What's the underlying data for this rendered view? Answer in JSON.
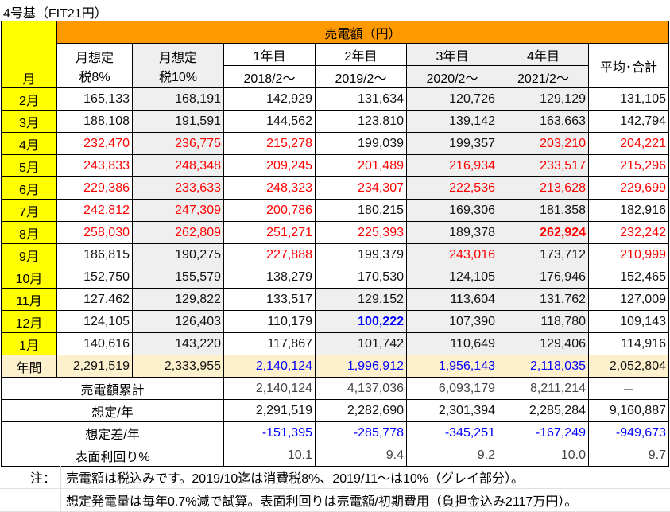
{
  "title": "4号基（FIT21円）",
  "header": {
    "month": "月",
    "group": "売電額（円）",
    "est8": [
      "月想定",
      "税8%"
    ],
    "est10": [
      "月想定",
      "税10%"
    ],
    "years": [
      {
        "label": "1年目",
        "start": "2018/2〜"
      },
      {
        "label": "2年目",
        "start": "2019/2〜"
      },
      {
        "label": "3年目",
        "start": "2020/2〜"
      },
      {
        "label": "4年目",
        "start": "2021/2〜"
      }
    ],
    "avg": "平均･合計"
  },
  "colors": {
    "red": "#ff0000",
    "blue": "#0000ff",
    "month_bg": "#ffff00",
    "header_bg": "#ff9900",
    "gray_bg": "#efefef",
    "annual_bg": "#fdf0cc"
  },
  "rows": [
    {
      "month": "2月",
      "cells": [
        [
          "165,133",
          "k"
        ],
        [
          "168,191",
          "k"
        ],
        [
          "142,929",
          "k"
        ],
        [
          "131,634",
          "k"
        ],
        [
          "120,726",
          "k"
        ],
        [
          "129,129",
          "k"
        ],
        [
          "131,105",
          "k"
        ]
      ]
    },
    {
      "month": "3月",
      "cells": [
        [
          "188,108",
          "k"
        ],
        [
          "191,591",
          "k"
        ],
        [
          "144,562",
          "k"
        ],
        [
          "123,810",
          "k"
        ],
        [
          "139,142",
          "k"
        ],
        [
          "163,663",
          "k"
        ],
        [
          "142,794",
          "k"
        ]
      ]
    },
    {
      "month": "4月",
      "cells": [
        [
          "232,470",
          "r"
        ],
        [
          "236,775",
          "r"
        ],
        [
          "215,278",
          "r"
        ],
        [
          "199,039",
          "k"
        ],
        [
          "199,357",
          "k"
        ],
        [
          "203,210",
          "r"
        ],
        [
          "204,221",
          "r"
        ]
      ]
    },
    {
      "month": "5月",
      "cells": [
        [
          "243,833",
          "r"
        ],
        [
          "248,348",
          "r"
        ],
        [
          "209,245",
          "r"
        ],
        [
          "201,489",
          "r"
        ],
        [
          "216,934",
          "r"
        ],
        [
          "233,517",
          "r"
        ],
        [
          "215,296",
          "r"
        ]
      ]
    },
    {
      "month": "6月",
      "cells": [
        [
          "229,386",
          "r"
        ],
        [
          "233,633",
          "r"
        ],
        [
          "248,323",
          "r"
        ],
        [
          "234,307",
          "r"
        ],
        [
          "222,536",
          "r"
        ],
        [
          "213,628",
          "r"
        ],
        [
          "229,699",
          "r"
        ]
      ]
    },
    {
      "month": "7月",
      "cells": [
        [
          "242,812",
          "r"
        ],
        [
          "247,309",
          "r"
        ],
        [
          "200,786",
          "r"
        ],
        [
          "180,215",
          "k"
        ],
        [
          "169,306",
          "k"
        ],
        [
          "181,358",
          "k"
        ],
        [
          "182,916",
          "k"
        ]
      ]
    },
    {
      "month": "8月",
      "cells": [
        [
          "258,030",
          "r"
        ],
        [
          "262,809",
          "r"
        ],
        [
          "251,271",
          "r"
        ],
        [
          "225,393",
          "r"
        ],
        [
          "189,378",
          "k"
        ],
        [
          "262,924",
          "r bold"
        ],
        [
          "232,242",
          "r"
        ]
      ]
    },
    {
      "month": "9月",
      "cells": [
        [
          "186,815",
          "k"
        ],
        [
          "190,275",
          "k"
        ],
        [
          "227,888",
          "r"
        ],
        [
          "199,379",
          "k"
        ],
        [
          "243,016",
          "r"
        ],
        [
          "173,712",
          "k"
        ],
        [
          "210,999",
          "r"
        ]
      ]
    },
    {
      "month": "10月",
      "cells": [
        [
          "152,750",
          "k"
        ],
        [
          "155,579",
          "k"
        ],
        [
          "138,279",
          "k"
        ],
        [
          "170,530",
          "k"
        ],
        [
          "124,105",
          "k"
        ],
        [
          "176,946",
          "k"
        ],
        [
          "152,465",
          "k"
        ]
      ]
    },
    {
      "month": "11月",
      "cells": [
        [
          "127,462",
          "k"
        ],
        [
          "129,822",
          "k"
        ],
        [
          "133,517",
          "k"
        ],
        [
          "129,152",
          "k"
        ],
        [
          "113,604",
          "k"
        ],
        [
          "131,762",
          "k"
        ],
        [
          "127,009",
          "k"
        ]
      ]
    },
    {
      "month": "12月",
      "cells": [
        [
          "124,105",
          "k"
        ],
        [
          "126,403",
          "k"
        ],
        [
          "110,179",
          "k"
        ],
        [
          "100,222",
          "b bold"
        ],
        [
          "107,390",
          "k"
        ],
        [
          "118,780",
          "k"
        ],
        [
          "109,143",
          "k"
        ]
      ]
    },
    {
      "month": "1月",
      "cells": [
        [
          "140,616",
          "k"
        ],
        [
          "143,220",
          "k"
        ],
        [
          "117,867",
          "k"
        ],
        [
          "101,742",
          "k"
        ],
        [
          "110,649",
          "k"
        ],
        [
          "129,406",
          "k"
        ],
        [
          "114,916",
          "k"
        ]
      ]
    }
  ],
  "annual": {
    "label": "年間",
    "cells": [
      [
        "2,291,519",
        "k"
      ],
      [
        "2,333,955",
        "k"
      ],
      [
        "2,140,124",
        "b"
      ],
      [
        "1,996,912",
        "b"
      ],
      [
        "1,956,143",
        "b"
      ],
      [
        "2,118,035",
        "b"
      ],
      [
        "2,052,804",
        "k"
      ]
    ]
  },
  "summary": [
    {
      "label": "売電額累計",
      "cells": [
        [
          "2,140,124",
          "gr"
        ],
        [
          "4,137,036",
          "gr"
        ],
        [
          "6,093,179",
          "gr"
        ],
        [
          "8,211,214",
          "gr"
        ],
        [
          "－",
          "k"
        ]
      ]
    },
    {
      "label": "想定/年",
      "cells": [
        [
          "2,291,519",
          "k"
        ],
        [
          "2,282,690",
          "k"
        ],
        [
          "2,301,394",
          "k"
        ],
        [
          "2,285,284",
          "k"
        ],
        [
          "9,160,887",
          "k"
        ]
      ]
    },
    {
      "label": "想定差/年",
      "cells": [
        [
          "-151,395",
          "b"
        ],
        [
          "-285,778",
          "b"
        ],
        [
          "-345,251",
          "b"
        ],
        [
          "-167,249",
          "b"
        ],
        [
          "-949,673",
          "b"
        ]
      ]
    },
    {
      "label": "表面利回り%",
      "cells": [
        [
          "10.1",
          "gr"
        ],
        [
          "9.4",
          "gr"
        ],
        [
          "9.2",
          "gr"
        ],
        [
          "10.0",
          "gr"
        ],
        [
          "9.7",
          "gr"
        ]
      ]
    }
  ],
  "notes": {
    "label": "注：",
    "lines": [
      "売電額は税込みです。2019/10迄は消費税8%、2019/11〜は10%（グレイ部分）。",
      "想定発電量は毎年0.7%減で試算。表面利回りは売電額/初期費用（負担金込み2117万円）。"
    ]
  }
}
